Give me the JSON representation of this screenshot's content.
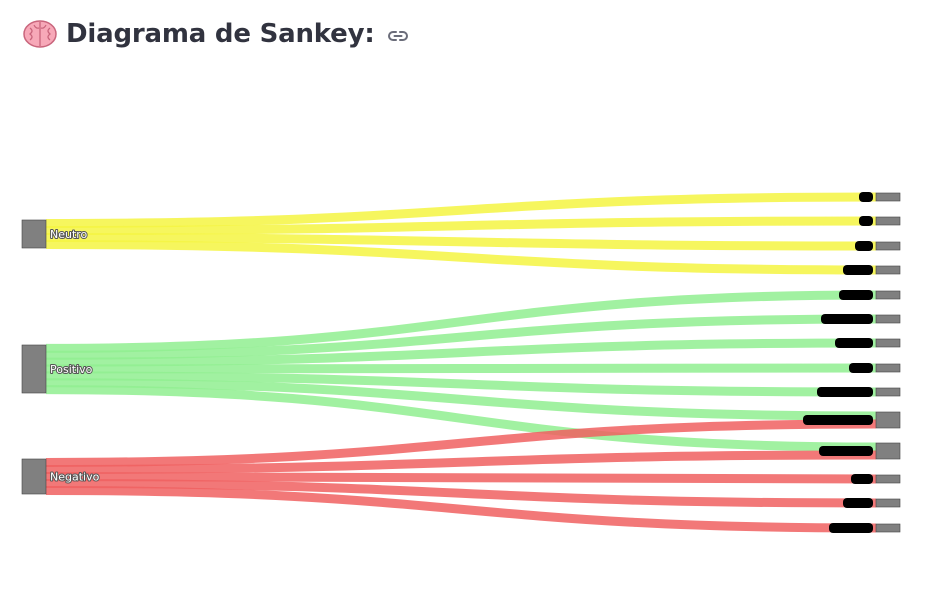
{
  "header": {
    "title": "Diagrama de Sankey:",
    "emoji_icon": "brain-icon",
    "link_icon": "link-icon"
  },
  "chart_data": {
    "type": "sankey",
    "title": "",
    "node_color": "#808080",
    "source_nodes": [
      {
        "label": "Neutro",
        "color": "#f5f542"
      },
      {
        "label": "Positivo",
        "color": "#90ee90"
      },
      {
        "label": "Negativo",
        "color": "#f06060"
      }
    ],
    "target_count": 15,
    "links": [
      {
        "source": 0,
        "target": 0,
        "value": 1
      },
      {
        "source": 0,
        "target": 1,
        "value": 1
      },
      {
        "source": 0,
        "target": 2,
        "value": 1
      },
      {
        "source": 0,
        "target": 3,
        "value": 1
      },
      {
        "source": 1,
        "target": 4,
        "value": 1
      },
      {
        "source": 1,
        "target": 5,
        "value": 1
      },
      {
        "source": 1,
        "target": 6,
        "value": 1
      },
      {
        "source": 1,
        "target": 7,
        "value": 1
      },
      {
        "source": 1,
        "target": 8,
        "value": 1
      },
      {
        "source": 1,
        "target": 9,
        "value": 1
      },
      {
        "source": 1,
        "target": 10,
        "value": 1
      },
      {
        "source": 2,
        "target": 9,
        "value": 1
      },
      {
        "source": 2,
        "target": 10,
        "value": 1
      },
      {
        "source": 2,
        "target": 11,
        "value": 1
      },
      {
        "source": 2,
        "target": 12,
        "value": 1
      },
      {
        "source": 2,
        "target": 13,
        "value": 1
      }
    ]
  }
}
